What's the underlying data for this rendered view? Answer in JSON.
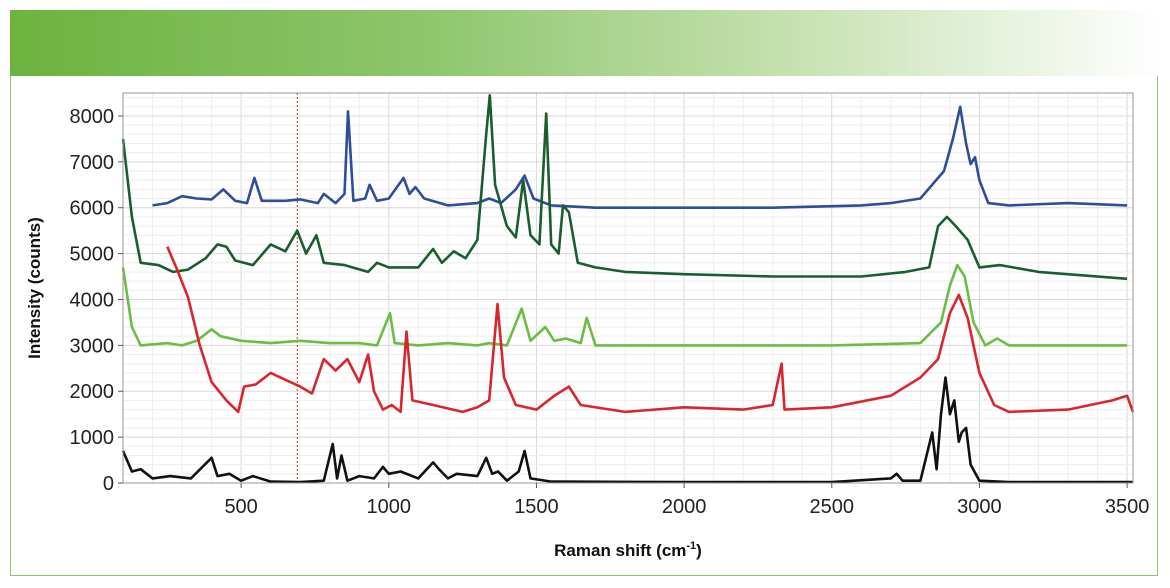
{
  "chart_data": {
    "type": "line",
    "title": "",
    "xlabel": "Raman shift (cm",
    "xlabel_sup": "-1",
    "xlabel_end": ")",
    "ylabel": "Intensity (counts)",
    "xlim": [
      100,
      3520
    ],
    "ylim": [
      0,
      8500
    ],
    "x_ticks": [
      500,
      1000,
      1500,
      2000,
      2500,
      3000,
      3500
    ],
    "y_ticks": [
      0,
      1000,
      2000,
      3000,
      4000,
      5000,
      6000,
      7000,
      8000
    ],
    "grid": true,
    "marker_line_x": 690,
    "series": [
      {
        "color": "#2e4d9c",
        "points": [
          [
            200,
            6050
          ],
          [
            250,
            6100
          ],
          [
            300,
            6250
          ],
          [
            350,
            6200
          ],
          [
            400,
            6180
          ],
          [
            440,
            6400
          ],
          [
            480,
            6150
          ],
          [
            520,
            6100
          ],
          [
            545,
            6650
          ],
          [
            570,
            6150
          ],
          [
            650,
            6150
          ],
          [
            700,
            6180
          ],
          [
            760,
            6100
          ],
          [
            780,
            6300
          ],
          [
            820,
            6100
          ],
          [
            850,
            6300
          ],
          [
            862,
            8100
          ],
          [
            880,
            6150
          ],
          [
            920,
            6200
          ],
          [
            935,
            6500
          ],
          [
            960,
            6150
          ],
          [
            1000,
            6200
          ],
          [
            1050,
            6650
          ],
          [
            1070,
            6300
          ],
          [
            1090,
            6450
          ],
          [
            1120,
            6200
          ],
          [
            1200,
            6050
          ],
          [
            1300,
            6100
          ],
          [
            1340,
            6200
          ],
          [
            1380,
            6100
          ],
          [
            1430,
            6400
          ],
          [
            1460,
            6700
          ],
          [
            1490,
            6200
          ],
          [
            1550,
            6050
          ],
          [
            1700,
            6000
          ],
          [
            2000,
            6000
          ],
          [
            2300,
            6000
          ],
          [
            2600,
            6050
          ],
          [
            2700,
            6100
          ],
          [
            2800,
            6200
          ],
          [
            2880,
            6800
          ],
          [
            2910,
            7500
          ],
          [
            2935,
            8200
          ],
          [
            2955,
            7400
          ],
          [
            2970,
            6950
          ],
          [
            2985,
            7100
          ],
          [
            3000,
            6600
          ],
          [
            3030,
            6100
          ],
          [
            3100,
            6050
          ],
          [
            3300,
            6100
          ],
          [
            3500,
            6050
          ]
        ]
      },
      {
        "color": "#1a5e2e",
        "points": [
          [
            100,
            7500
          ],
          [
            130,
            5800
          ],
          [
            160,
            4800
          ],
          [
            220,
            4750
          ],
          [
            270,
            4600
          ],
          [
            320,
            4650
          ],
          [
            380,
            4900
          ],
          [
            420,
            5200
          ],
          [
            450,
            5150
          ],
          [
            480,
            4850
          ],
          [
            540,
            4750
          ],
          [
            600,
            5200
          ],
          [
            650,
            5050
          ],
          [
            690,
            5500
          ],
          [
            720,
            5000
          ],
          [
            755,
            5400
          ],
          [
            780,
            4800
          ],
          [
            850,
            4750
          ],
          [
            930,
            4600
          ],
          [
            960,
            4800
          ],
          [
            1000,
            4700
          ],
          [
            1100,
            4700
          ],
          [
            1150,
            5100
          ],
          [
            1180,
            4800
          ],
          [
            1220,
            5050
          ],
          [
            1260,
            4900
          ],
          [
            1300,
            5300
          ],
          [
            1330,
            7600
          ],
          [
            1342,
            8450
          ],
          [
            1360,
            6500
          ],
          [
            1400,
            5600
          ],
          [
            1430,
            5350
          ],
          [
            1455,
            6600
          ],
          [
            1480,
            5400
          ],
          [
            1510,
            5200
          ],
          [
            1533,
            8050
          ],
          [
            1550,
            5200
          ],
          [
            1575,
            5000
          ],
          [
            1590,
            6050
          ],
          [
            1610,
            5900
          ],
          [
            1640,
            4800
          ],
          [
            1700,
            4700
          ],
          [
            1800,
            4600
          ],
          [
            2000,
            4550
          ],
          [
            2300,
            4500
          ],
          [
            2600,
            4500
          ],
          [
            2750,
            4600
          ],
          [
            2830,
            4700
          ],
          [
            2860,
            5600
          ],
          [
            2890,
            5800
          ],
          [
            2920,
            5600
          ],
          [
            2960,
            5300
          ],
          [
            3000,
            4700
          ],
          [
            3070,
            4750
          ],
          [
            3200,
            4600
          ],
          [
            3500,
            4450
          ]
        ]
      },
      {
        "color": "#6cbd45",
        "points": [
          [
            100,
            4700
          ],
          [
            130,
            3400
          ],
          [
            160,
            3000
          ],
          [
            250,
            3050
          ],
          [
            300,
            3000
          ],
          [
            350,
            3100
          ],
          [
            400,
            3350
          ],
          [
            430,
            3200
          ],
          [
            500,
            3100
          ],
          [
            600,
            3050
          ],
          [
            700,
            3100
          ],
          [
            800,
            3050
          ],
          [
            900,
            3050
          ],
          [
            960,
            3000
          ],
          [
            1004,
            3700
          ],
          [
            1020,
            3050
          ],
          [
            1100,
            3000
          ],
          [
            1200,
            3050
          ],
          [
            1300,
            3000
          ],
          [
            1340,
            3050
          ],
          [
            1400,
            3000
          ],
          [
            1450,
            3800
          ],
          [
            1480,
            3100
          ],
          [
            1530,
            3400
          ],
          [
            1560,
            3100
          ],
          [
            1600,
            3150
          ],
          [
            1650,
            3050
          ],
          [
            1670,
            3600
          ],
          [
            1700,
            3000
          ],
          [
            2000,
            3000
          ],
          [
            2500,
            3000
          ],
          [
            2800,
            3050
          ],
          [
            2870,
            3500
          ],
          [
            2900,
            4300
          ],
          [
            2925,
            4750
          ],
          [
            2950,
            4500
          ],
          [
            2980,
            3500
          ],
          [
            3020,
            3000
          ],
          [
            3060,
            3150
          ],
          [
            3100,
            3000
          ],
          [
            3500,
            3000
          ]
        ]
      },
      {
        "color": "#d9262e",
        "points": [
          [
            250,
            5150
          ],
          [
            280,
            4700
          ],
          [
            320,
            4050
          ],
          [
            360,
            3000
          ],
          [
            400,
            2200
          ],
          [
            450,
            1800
          ],
          [
            490,
            1550
          ],
          [
            510,
            2100
          ],
          [
            550,
            2150
          ],
          [
            600,
            2400
          ],
          [
            650,
            2250
          ],
          [
            700,
            2100
          ],
          [
            740,
            1950
          ],
          [
            780,
            2700
          ],
          [
            820,
            2450
          ],
          [
            860,
            2700
          ],
          [
            900,
            2200
          ],
          [
            930,
            2800
          ],
          [
            950,
            2000
          ],
          [
            980,
            1600
          ],
          [
            1010,
            1700
          ],
          [
            1040,
            1550
          ],
          [
            1060,
            3300
          ],
          [
            1080,
            1800
          ],
          [
            1150,
            1700
          ],
          [
            1250,
            1550
          ],
          [
            1300,
            1650
          ],
          [
            1340,
            1800
          ],
          [
            1368,
            3900
          ],
          [
            1390,
            2300
          ],
          [
            1430,
            1700
          ],
          [
            1500,
            1600
          ],
          [
            1560,
            1900
          ],
          [
            1610,
            2100
          ],
          [
            1650,
            1700
          ],
          [
            1800,
            1550
          ],
          [
            2000,
            1650
          ],
          [
            2200,
            1600
          ],
          [
            2300,
            1700
          ],
          [
            2330,
            2600
          ],
          [
            2340,
            1600
          ],
          [
            2500,
            1650
          ],
          [
            2700,
            1900
          ],
          [
            2800,
            2300
          ],
          [
            2860,
            2700
          ],
          [
            2900,
            3700
          ],
          [
            2930,
            4100
          ],
          [
            2960,
            3600
          ],
          [
            3000,
            2400
          ],
          [
            3050,
            1700
          ],
          [
            3100,
            1550
          ],
          [
            3300,
            1600
          ],
          [
            3450,
            1800
          ],
          [
            3500,
            1900
          ],
          [
            3520,
            1550
          ]
        ]
      },
      {
        "color": "#111111",
        "points": [
          [
            100,
            700
          ],
          [
            130,
            250
          ],
          [
            160,
            300
          ],
          [
            200,
            100
          ],
          [
            260,
            150
          ],
          [
            330,
            100
          ],
          [
            400,
            550
          ],
          [
            420,
            150
          ],
          [
            460,
            200
          ],
          [
            500,
            50
          ],
          [
            540,
            150
          ],
          [
            600,
            30
          ],
          [
            700,
            20
          ],
          [
            780,
            50
          ],
          [
            810,
            850
          ],
          [
            825,
            100
          ],
          [
            840,
            600
          ],
          [
            860,
            50
          ],
          [
            900,
            150
          ],
          [
            950,
            100
          ],
          [
            980,
            350
          ],
          [
            1000,
            200
          ],
          [
            1040,
            250
          ],
          [
            1100,
            100
          ],
          [
            1150,
            450
          ],
          [
            1170,
            300
          ],
          [
            1200,
            100
          ],
          [
            1230,
            200
          ],
          [
            1300,
            150
          ],
          [
            1330,
            550
          ],
          [
            1350,
            200
          ],
          [
            1370,
            250
          ],
          [
            1400,
            50
          ],
          [
            1440,
            250
          ],
          [
            1460,
            700
          ],
          [
            1480,
            100
          ],
          [
            1550,
            30
          ],
          [
            2000,
            20
          ],
          [
            2500,
            20
          ],
          [
            2700,
            100
          ],
          [
            2720,
            200
          ],
          [
            2740,
            50
          ],
          [
            2800,
            50
          ],
          [
            2840,
            1100
          ],
          [
            2855,
            300
          ],
          [
            2870,
            1500
          ],
          [
            2885,
            2300
          ],
          [
            2900,
            1500
          ],
          [
            2915,
            1800
          ],
          [
            2930,
            900
          ],
          [
            2940,
            1100
          ],
          [
            2955,
            1200
          ],
          [
            2970,
            400
          ],
          [
            3000,
            50
          ],
          [
            3100,
            20
          ],
          [
            3520,
            20
          ]
        ]
      }
    ]
  }
}
